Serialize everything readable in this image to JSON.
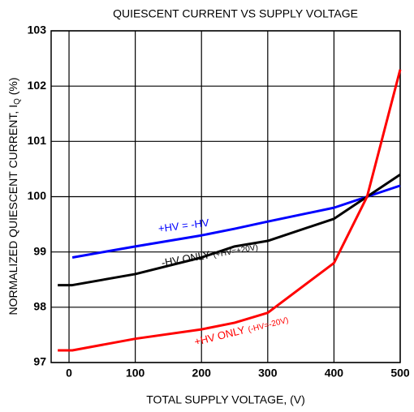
{
  "chart_data": {
    "type": "line",
    "title": "QUIESCENT CURRENT VS SUPPLY VOLTAGE",
    "xlabel": "TOTAL SUPPLY VOLTAGE, (V)",
    "ylabel": {
      "text": "NORMALIZED QUIESCENT CURRENT, I",
      "subscript": "Q",
      "suffix": "(%)"
    },
    "x": [
      -17,
      5,
      100,
      200,
      250,
      300,
      400,
      450,
      500
    ],
    "series": [
      {
        "color": "#0000ff",
        "values": [
          null,
          98.9,
          99.1,
          99.3,
          99.42,
          99.55,
          99.8,
          100,
          100.2
        ]
      },
      {
        "color": "#000000",
        "values": [
          98.4,
          98.4,
          98.6,
          98.9,
          99.1,
          99.2,
          99.6,
          100,
          100.4
        ]
      },
      {
        "color": "#ff0000",
        "values": [
          97.22,
          97.22,
          97.43,
          97.6,
          97.72,
          97.9,
          98.8,
          100,
          102.3
        ]
      }
    ],
    "annotations": [
      {
        "text": "+HV = -HV",
        "series": 0,
        "x": 135,
        "y": 99.4,
        "angle": -7
      },
      {
        "text": "-HV ONLY",
        "small": "(+HV=+20V)",
        "series": 1,
        "x": 140,
        "y": 98.78,
        "angle": -10
      },
      {
        "text": "+HV ONLY",
        "small": "(-HV=-20V)",
        "series": 2,
        "x": 190,
        "y": 97.35,
        "angle": -14
      }
    ],
    "xlim": [
      -27,
      500
    ],
    "xticks": [
      0,
      100,
      200,
      300,
      400,
      500
    ],
    "ylim": [
      97,
      103
    ],
    "yticks": [
      97,
      98,
      99,
      100,
      101,
      102,
      103
    ],
    "grid": true
  }
}
